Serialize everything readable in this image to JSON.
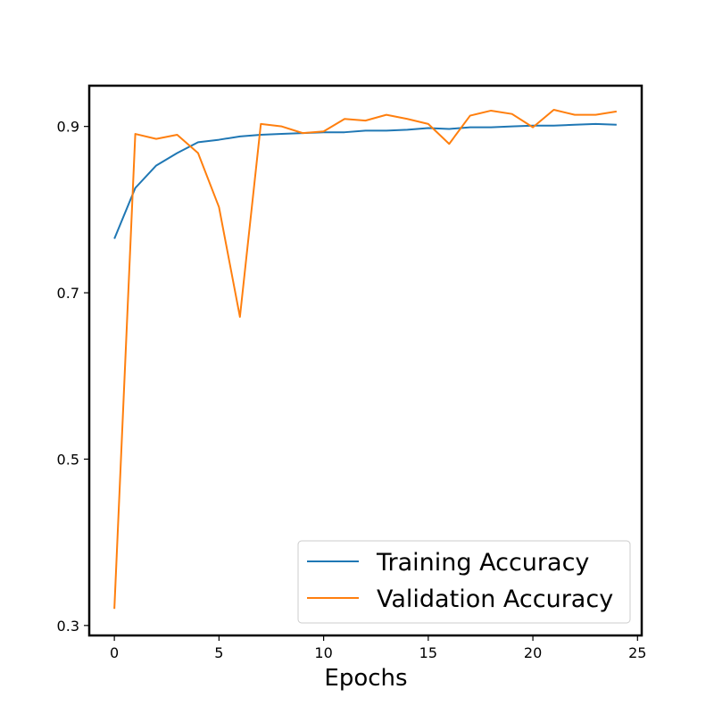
{
  "chart_data": {
    "type": "line",
    "title": "",
    "xlabel": "Epochs",
    "ylabel": "",
    "xlim": [
      -1.2,
      25.2
    ],
    "ylim": [
      0.288,
      0.949
    ],
    "xticks": [
      "0",
      "5",
      "10",
      "15",
      "20",
      "25"
    ],
    "xtick_values": [
      0,
      5,
      10,
      15,
      20,
      25
    ],
    "yticks": [
      "0.3",
      "0.5",
      "0.7",
      "0.9"
    ],
    "ytick_values": [
      0.3,
      0.5,
      0.7,
      0.9
    ],
    "grid": false,
    "legend_position": "lower-right",
    "series": [
      {
        "name": "Training Accuracy",
        "color": "#1f77b4",
        "x": [
          0,
          1,
          2,
          3,
          4,
          5,
          6,
          7,
          8,
          9,
          10,
          11,
          12,
          13,
          14,
          15,
          16,
          17,
          18,
          19,
          20,
          21,
          22,
          23,
          24
        ],
        "values": [
          0.765,
          0.826,
          0.853,
          0.868,
          0.881,
          0.884,
          0.888,
          0.89,
          0.891,
          0.892,
          0.893,
          0.893,
          0.895,
          0.895,
          0.896,
          0.898,
          0.897,
          0.899,
          0.899,
          0.9,
          0.901,
          0.901,
          0.902,
          0.903,
          0.902
        ]
      },
      {
        "name": "Validation Accuracy",
        "color": "#ff7f0e",
        "x": [
          0,
          1,
          2,
          3,
          4,
          5,
          6,
          7,
          8,
          9,
          10,
          11,
          12,
          13,
          14,
          15,
          16,
          17,
          18,
          19,
          20,
          21,
          22,
          23,
          24
        ],
        "values": [
          0.32,
          0.891,
          0.885,
          0.89,
          0.868,
          0.803,
          0.671,
          0.903,
          0.9,
          0.892,
          0.894,
          0.909,
          0.907,
          0.914,
          0.909,
          0.903,
          0.879,
          0.913,
          0.919,
          0.915,
          0.899,
          0.92,
          0.914,
          0.914,
          0.918
        ]
      }
    ]
  }
}
